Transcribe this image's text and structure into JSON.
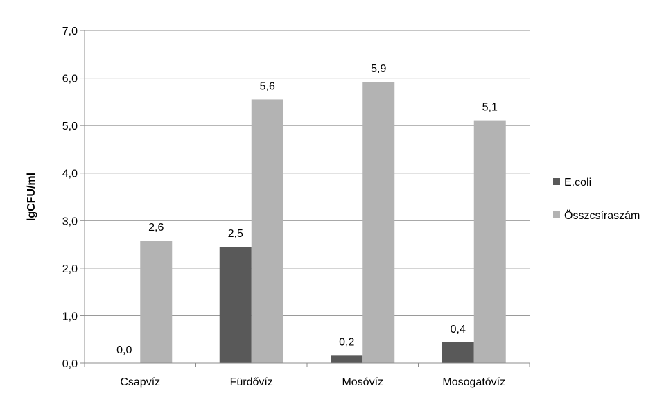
{
  "chart_data": {
    "type": "bar",
    "title": "",
    "xlabel": "",
    "ylabel": "lgCFU/ml",
    "ylim": [
      0,
      7
    ],
    "ytick_step": 1,
    "yticks": [
      "0,0",
      "1,0",
      "2,0",
      "3,0",
      "4,0",
      "5,0",
      "6,0",
      "7,0"
    ],
    "categories": [
      "Csapvíz",
      "Fürdővíz",
      "Mosóvíz",
      "Mosogatóvíz"
    ],
    "series": [
      {
        "name": "E.coli",
        "color": "#595959",
        "values": [
          0.0,
          2.45,
          0.17,
          0.44
        ],
        "labels": [
          "0,0",
          "2,5",
          "0,2",
          "0,4"
        ]
      },
      {
        "name": "Összcsíraszám",
        "color": "#b3b3b3",
        "values": [
          2.58,
          5.55,
          5.92,
          5.11
        ],
        "labels": [
          "2,6",
          "5,6",
          "5,9",
          "5,1"
        ]
      }
    ],
    "grid": true,
    "legend": "right"
  }
}
